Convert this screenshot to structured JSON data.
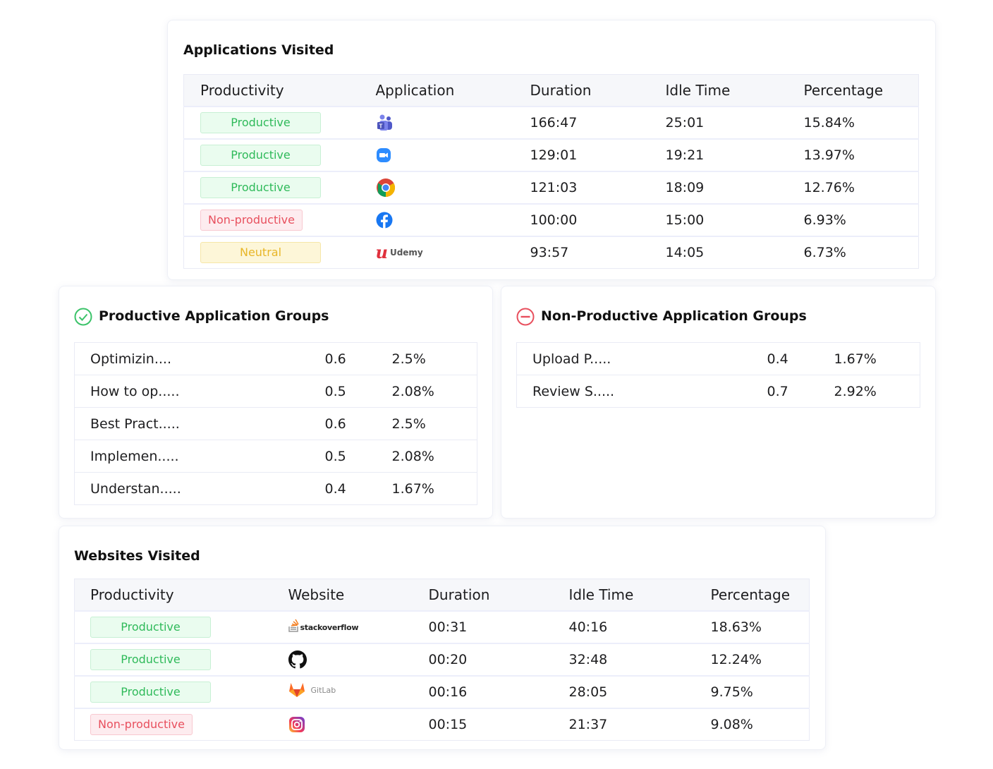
{
  "apps": {
    "title": "Applications Visited",
    "headers": [
      "Productivity",
      "Application",
      "Duration",
      "Idle Time",
      "Percentage"
    ],
    "rows": [
      {
        "status": "Productive",
        "app": "teams-icon",
        "duration": "166:47",
        "idle": "25:01",
        "pct": "15.84%"
      },
      {
        "status": "Productive",
        "app": "zoom-icon",
        "duration": "129:01",
        "idle": "19:21",
        "pct": "13.97%"
      },
      {
        "status": "Productive",
        "app": "chrome-icon",
        "duration": "121:03",
        "idle": "18:09",
        "pct": "12.76%"
      },
      {
        "status": "Non-productive",
        "app": "facebook-icon",
        "duration": "100:00",
        "idle": "15:00",
        "pct": "6.93%"
      },
      {
        "status": "Neutral",
        "app": "udemy-logo",
        "app_label": "Udemy",
        "duration": "93:57",
        "idle": "14:05",
        "pct": "6.73%"
      }
    ]
  },
  "prod_groups": {
    "title": "Productive Application Groups",
    "rows": [
      {
        "name": "Optimizin....",
        "value": "0.6",
        "pct": "2.5%"
      },
      {
        "name": "How to op.....",
        "value": "0.5",
        "pct": "2.08%"
      },
      {
        "name": "Best Pract.....",
        "value": "0.6",
        "pct": "2.5%"
      },
      {
        "name": "Implemen.....",
        "value": "0.5",
        "pct": "2.08%"
      },
      {
        "name": "Understan.....",
        "value": "0.4",
        "pct": "1.67%"
      }
    ]
  },
  "nonprod_groups": {
    "title": "Non-Productive Application Groups",
    "rows": [
      {
        "name": "Upload P.....",
        "value": "0.4",
        "pct": "1.67%"
      },
      {
        "name": "Review S.....",
        "value": "0.7",
        "pct": "2.92%"
      }
    ]
  },
  "websites": {
    "title": "Websites Visited",
    "headers": [
      "Productivity",
      "Website",
      "Duration",
      "Idle Time",
      "Percentage"
    ],
    "rows": [
      {
        "status": "Productive",
        "site": "stackoverflow-logo",
        "site_label": "stackoverflow",
        "duration": "00:31",
        "idle": "40:16",
        "pct": "18.63%"
      },
      {
        "status": "Productive",
        "site": "github-icon",
        "duration": "00:20",
        "idle": "32:48",
        "pct": "12.24%"
      },
      {
        "status": "Productive",
        "site": "gitlab-logo",
        "site_label": "GitLab",
        "duration": "00:16",
        "idle": "28:05",
        "pct": "9.75%"
      },
      {
        "status": "Non-productive",
        "site": "instagram-icon",
        "duration": "00:15",
        "idle": "21:37",
        "pct": "9.08%"
      }
    ]
  }
}
